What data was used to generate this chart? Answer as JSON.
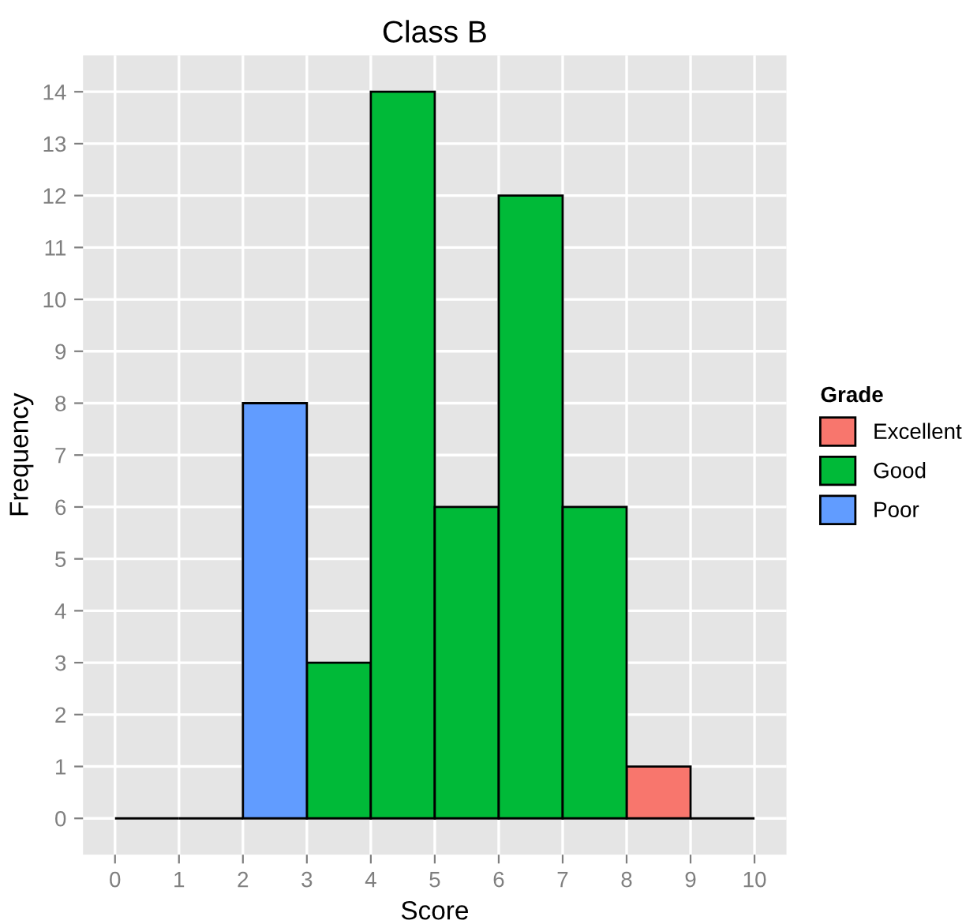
{
  "chart_data": {
    "type": "histogram",
    "title": "Class B",
    "xlabel": "Score",
    "ylabel": "Frequency",
    "legend_title": "Grade",
    "bins": [
      0,
      1,
      2,
      3,
      4,
      5,
      6,
      7,
      8,
      9,
      10
    ],
    "series": [
      {
        "name": "Excellent",
        "color": "#f8766d",
        "values": [
          null,
          null,
          null,
          null,
          null,
          null,
          null,
          null,
          1,
          null
        ]
      },
      {
        "name": "Good",
        "color": "#00ba38",
        "values": [
          null,
          null,
          null,
          3,
          14,
          6,
          12,
          6,
          null,
          null
        ]
      },
      {
        "name": "Poor",
        "color": "#619cff",
        "values": [
          null,
          null,
          8,
          null,
          null,
          null,
          null,
          null,
          null,
          null
        ]
      },
      {
        "color": "#000000",
        "values": [
          0,
          0,
          null,
          null,
          null,
          null,
          null,
          null,
          null,
          0
        ]
      }
    ],
    "xlim": [
      -0.5,
      10.5
    ],
    "ylim": [
      -0.7,
      14.7
    ],
    "xticks": [
      0,
      1,
      2,
      3,
      4,
      5,
      6,
      7,
      8,
      9,
      10
    ],
    "yticks": [
      0,
      1,
      2,
      3,
      4,
      5,
      6,
      7,
      8,
      9,
      10,
      11,
      12,
      13,
      14
    ],
    "grid": true,
    "legend": "right"
  }
}
